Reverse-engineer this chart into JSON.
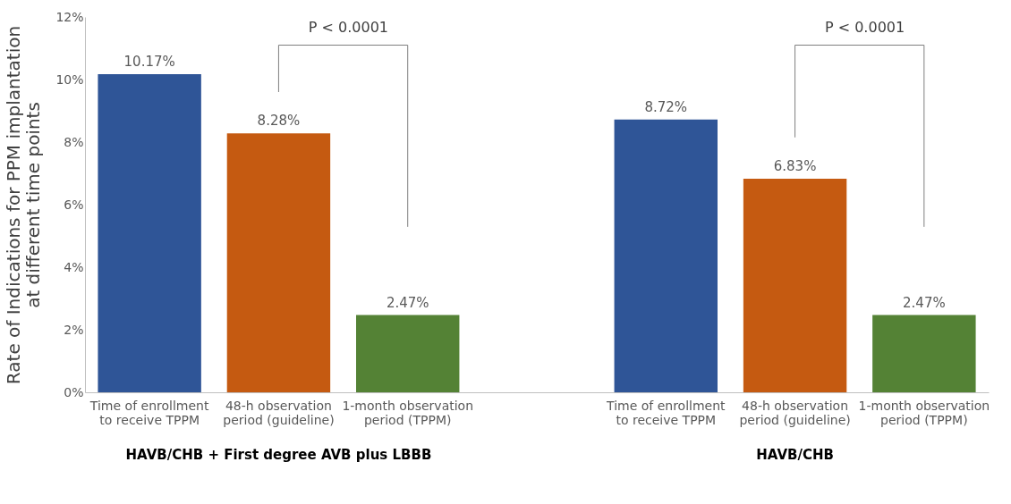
{
  "chart_data": {
    "type": "bar",
    "ylabel": "Rate of Indications for PPM implantation\nat different time points",
    "categories": [
      "Time of enrollment\nto receive TPPM",
      "48-h observation\nperiod (guideline)",
      "1-month observation\nperiod (TPPM)",
      "Time of enrollment\nto receive TPPM",
      "48-h observation\nperiod (guideline)",
      "1-month observation\nperiod (TPPM)"
    ],
    "values": [
      10.17,
      8.28,
      2.47,
      8.72,
      6.83,
      2.47
    ],
    "colors": [
      "#2f5597",
      "#c55a11",
      "#548235",
      "#2f5597",
      "#c55a11",
      "#548235"
    ],
    "value_labels": [
      "10.17%",
      "8.28%",
      "2.47%",
      "8.72%",
      "6.83%",
      "2.47%"
    ],
    "ylim": [
      0,
      12
    ],
    "yticks": [
      {
        "value": 0,
        "label": "0%"
      },
      {
        "value": 2,
        "label": "2%"
      },
      {
        "value": 4,
        "label": "4%"
      },
      {
        "value": 6,
        "label": "6%"
      },
      {
        "value": 8,
        "label": "8%"
      },
      {
        "value": 10,
        "label": "10%"
      },
      {
        "value": 12,
        "label": "12%"
      }
    ],
    "grid": false,
    "annotations": [
      "P < 0.0001",
      "P < 0.0001",
      "HAVB/CHB + First degree AVB plus LBBB",
      "HAVB/CHB"
    ]
  }
}
